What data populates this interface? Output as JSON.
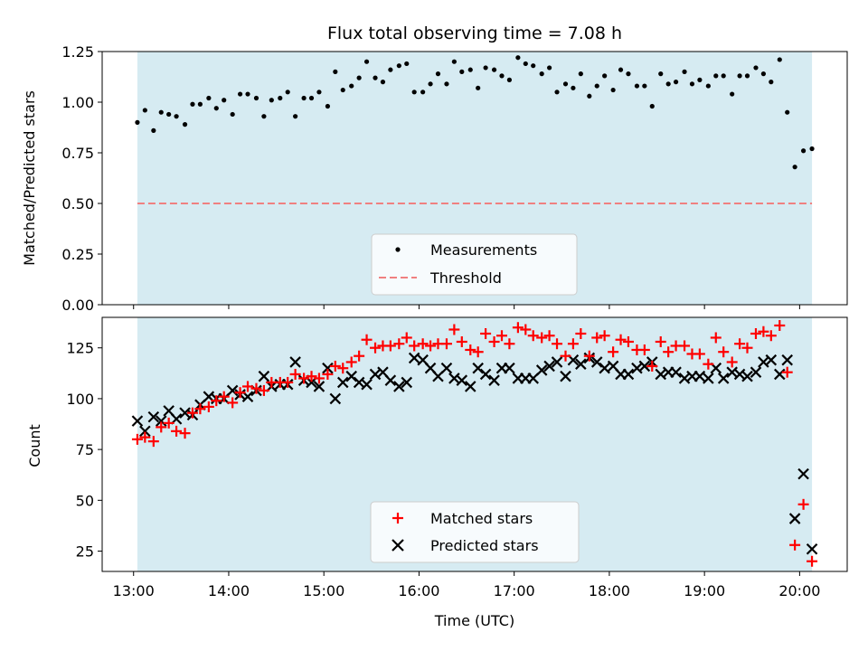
{
  "chart_data": {
    "title": "Flux total observing time = 7.08 h",
    "type": "scatter",
    "xlabel": "Time (UTC)",
    "xlim": [
      12.67,
      20.5
    ],
    "x_ticks": [
      {
        "value": 13,
        "label": "13:00"
      },
      {
        "value": 14,
        "label": "14:00"
      },
      {
        "value": 15,
        "label": "15:00"
      },
      {
        "value": 16,
        "label": "16:00"
      },
      {
        "value": 17,
        "label": "17:00"
      },
      {
        "value": 18,
        "label": "18:00"
      },
      {
        "value": 19,
        "label": "19:00"
      },
      {
        "value": 20,
        "label": "20:00"
      }
    ],
    "observing_window": {
      "start": 13.04,
      "end": 20.13,
      "color": "#add8e6"
    },
    "colors": {
      "measurements": "#000000",
      "threshold": "#f08080",
      "matched": "#ff0000",
      "predicted": "#000000"
    },
    "top": {
      "ylabel": "Matched/Predicted stars",
      "ylim": [
        0,
        1.25
      ],
      "y_ticks": [
        {
          "value": 0,
          "label": "0.00"
        },
        {
          "value": 0.25,
          "label": "0.25"
        },
        {
          "value": 0.5,
          "label": "0.50"
        },
        {
          "value": 0.75,
          "label": "0.75"
        },
        {
          "value": 1.0,
          "label": "1.00"
        },
        {
          "value": 1.25,
          "label": "1.25"
        }
      ],
      "threshold": 0.5,
      "legend": [
        "Measurements",
        "Threshold"
      ],
      "measurements": {
        "x": [
          13.04,
          13.12,
          13.21,
          13.29,
          13.37,
          13.45,
          13.54,
          13.62,
          13.7,
          13.79,
          13.87,
          13.95,
          14.04,
          14.12,
          14.2,
          14.29,
          14.37,
          14.45,
          14.54,
          14.62,
          14.7,
          14.79,
          14.87,
          14.95,
          15.04,
          15.12,
          15.2,
          15.29,
          15.37,
          15.45,
          15.54,
          15.62,
          15.7,
          15.79,
          15.87,
          15.95,
          16.04,
          16.12,
          16.2,
          16.29,
          16.37,
          16.45,
          16.54,
          16.62,
          16.7,
          16.79,
          16.87,
          16.95,
          17.04,
          17.12,
          17.2,
          17.29,
          17.37,
          17.45,
          17.54,
          17.62,
          17.7,
          17.79,
          17.87,
          17.95,
          18.04,
          18.12,
          18.2,
          18.29,
          18.37,
          18.45,
          18.54,
          18.62,
          18.7,
          18.79,
          18.87,
          18.95,
          19.04,
          19.12,
          19.2,
          19.29,
          19.37,
          19.45,
          19.54,
          19.62,
          19.7,
          19.79,
          19.87,
          19.95,
          20.04,
          20.13
        ],
        "y": [
          0.9,
          0.96,
          0.86,
          0.95,
          0.94,
          0.93,
          0.89,
          0.99,
          0.99,
          1.02,
          0.97,
          1.01,
          0.94,
          1.04,
          1.04,
          1.02,
          0.93,
          1.01,
          1.02,
          1.05,
          0.93,
          1.02,
          1.02,
          1.05,
          0.98,
          1.15,
          1.06,
          1.08,
          1.12,
          1.2,
          1.12,
          1.1,
          1.16,
          1.18,
          1.19,
          1.05,
          1.05,
          1.09,
          1.14,
          1.09,
          1.2,
          1.15,
          1.16,
          1.07,
          1.17,
          1.16,
          1.13,
          1.11,
          1.22,
          1.19,
          1.18,
          1.14,
          1.17,
          1.05,
          1.09,
          1.07,
          1.14,
          1.03,
          1.08,
          1.13,
          1.06,
          1.16,
          1.14,
          1.08,
          1.08,
          0.98,
          1.14,
          1.09,
          1.1,
          1.15,
          1.09,
          1.11,
          1.08,
          1.13,
          1.13,
          1.04,
          1.13,
          1.13,
          1.17,
          1.14,
          1.1,
          1.21,
          0.95,
          0.68,
          0.76,
          0.77
        ]
      }
    },
    "bottom": {
      "ylabel": "Count",
      "ylim": [
        15,
        140
      ],
      "y_ticks": [
        {
          "value": 25,
          "label": "25"
        },
        {
          "value": 50,
          "label": "50"
        },
        {
          "value": 75,
          "label": "75"
        },
        {
          "value": 100,
          "label": "100"
        },
        {
          "value": 125,
          "label": "125"
        }
      ],
      "legend": [
        "Matched stars",
        "Predicted stars"
      ],
      "x": [
        13.04,
        13.12,
        13.21,
        13.29,
        13.37,
        13.45,
        13.54,
        13.62,
        13.7,
        13.79,
        13.87,
        13.95,
        14.04,
        14.12,
        14.2,
        14.29,
        14.37,
        14.45,
        14.54,
        14.62,
        14.7,
        14.79,
        14.87,
        14.95,
        15.04,
        15.12,
        15.2,
        15.29,
        15.37,
        15.45,
        15.54,
        15.62,
        15.7,
        15.79,
        15.87,
        15.95,
        16.04,
        16.12,
        16.2,
        16.29,
        16.37,
        16.45,
        16.54,
        16.62,
        16.7,
        16.79,
        16.87,
        16.95,
        17.04,
        17.12,
        17.2,
        17.29,
        17.37,
        17.45,
        17.54,
        17.62,
        17.7,
        17.79,
        17.87,
        17.95,
        18.04,
        18.12,
        18.2,
        18.29,
        18.37,
        18.45,
        18.54,
        18.62,
        18.7,
        18.79,
        18.87,
        18.95,
        19.04,
        19.12,
        19.2,
        19.29,
        19.37,
        19.45,
        19.54,
        19.62,
        19.7,
        19.79,
        19.87,
        19.95,
        20.04,
        20.13
      ],
      "series": [
        {
          "name": "Matched stars",
          "values": [
            80,
            81,
            79,
            86,
            88,
            84,
            83,
            93,
            95,
            96,
            99,
            101,
            98,
            103,
            106,
            105,
            104,
            108,
            108,
            108,
            112,
            110,
            111,
            110,
            112,
            116,
            115,
            118,
            121,
            129,
            125,
            126,
            126,
            127,
            130,
            126,
            127,
            126,
            127,
            127,
            134,
            128,
            124,
            123,
            132,
            128,
            131,
            127,
            135,
            134,
            131,
            130,
            131,
            127,
            121,
            127,
            132,
            121,
            130,
            131,
            123,
            129,
            128,
            124,
            124,
            116,
            128,
            123,
            126,
            126,
            122,
            122,
            117,
            130,
            123,
            118,
            127,
            125,
            132,
            133,
            131,
            136,
            113,
            28,
            48,
            20
          ]
        },
        {
          "name": "Predicted stars",
          "values": [
            89,
            84,
            91,
            89,
            94,
            90,
            93,
            92,
            97,
            101,
            100,
            100,
            104,
            102,
            101,
            104,
            111,
            106,
            107,
            107,
            118,
            109,
            108,
            106,
            115,
            100,
            108,
            111,
            108,
            107,
            112,
            113,
            109,
            106,
            108,
            120,
            119,
            115,
            111,
            115,
            110,
            109,
            106,
            115,
            112,
            109,
            115,
            115,
            110,
            110,
            110,
            114,
            116,
            118,
            111,
            119,
            117,
            120,
            118,
            115,
            116,
            112,
            112,
            115,
            116,
            118,
            112,
            113,
            113,
            110,
            111,
            111,
            110,
            115,
            110,
            113,
            112,
            111,
            113,
            118,
            119,
            112,
            119,
            41,
            63,
            26
          ]
        }
      ]
    }
  }
}
